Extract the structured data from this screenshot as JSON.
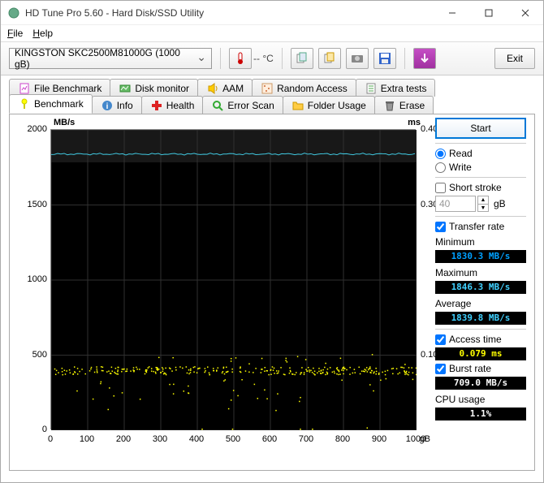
{
  "window": {
    "title": "HD Tune Pro 5.60 - Hard Disk/SSD Utility"
  },
  "menu": {
    "file": "File",
    "help": "Help"
  },
  "toolbar": {
    "drive": "KINGSTON SKC2500M81000G (1000 gB)",
    "temp": "-- °C",
    "exit": "Exit"
  },
  "tabs_row1": {
    "file_benchmark": "File Benchmark",
    "disk_monitor": "Disk monitor",
    "aam": "AAM",
    "random_access": "Random Access",
    "extra_tests": "Extra tests"
  },
  "tabs_row2": {
    "benchmark": "Benchmark",
    "info": "Info",
    "health": "Health",
    "error_scan": "Error Scan",
    "folder_usage": "Folder Usage",
    "erase": "Erase"
  },
  "chart": {
    "y_label_left": "MB/s",
    "y_label_right": "ms",
    "x_unit": "gB",
    "ylim_left": [
      0,
      2000
    ],
    "ytick_step_left": 500,
    "ylim_right": [
      0,
      0.4
    ],
    "yticks_right": [
      0.1,
      0.3,
      0.4
    ],
    "xlim": [
      0,
      1000
    ],
    "xtick_step": 100,
    "background": "#000000",
    "grid_color": "#303030",
    "transfer_line_color": "#40c8e0",
    "transfer_value": 1839,
    "access_point_color": "#ffff00",
    "access_band_y": 0.08
  },
  "side": {
    "start": "Start",
    "read": "Read",
    "write": "Write",
    "short_stroke": "Short stroke",
    "short_stroke_val": "40",
    "short_stroke_unit": "gB",
    "transfer_rate": "Transfer rate",
    "minimum": "Minimum",
    "minimum_val": "1830.3 MB/s",
    "maximum": "Maximum",
    "maximum_val": "1846.3 MB/s",
    "average": "Average",
    "average_val": "1839.8 MB/s",
    "access_time": "Access time",
    "access_time_val": "0.079 ms",
    "burst_rate": "Burst rate",
    "burst_rate_val": "709.0 MB/s",
    "cpu_usage": "CPU usage",
    "cpu_usage_val": "1.1%"
  },
  "colors": {
    "transfer_min": "#00a0ff",
    "transfer_max": "#40d0ff",
    "transfer_avg": "#40d0ff",
    "access_time": "#ffff00",
    "burst": "#ffffff",
    "cpu": "#ffffff"
  }
}
